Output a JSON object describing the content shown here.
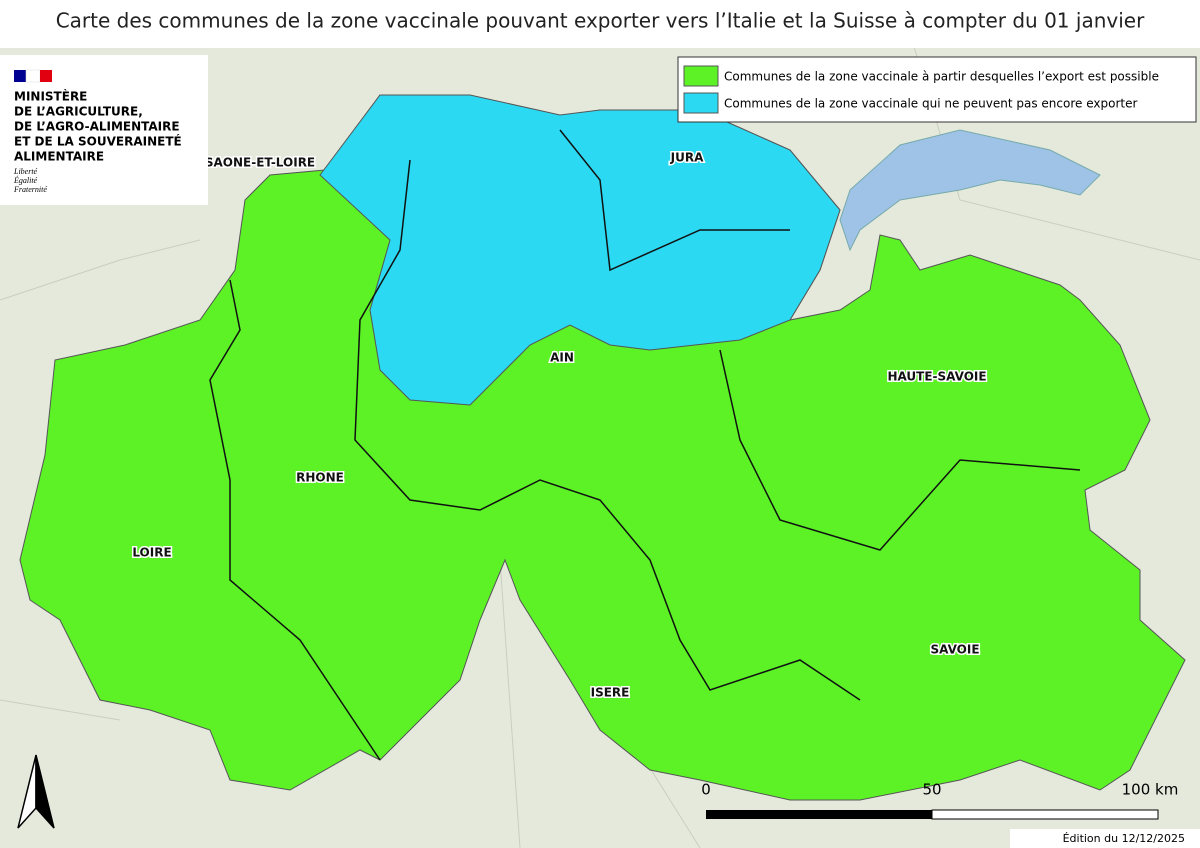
{
  "title": "Carte des communes de la zone vaccinale pouvant exporter vers l’Italie et la Suisse à compter du 01 janvier",
  "logo": {
    "lines": [
      "MINISTÈRE",
      "DE L’AGRICULTURE,",
      "DE L’AGRO-ALIMENTAIRE",
      "ET DE LA SOUVERAINETÉ",
      "ALIMENTAIRE"
    ],
    "motto": [
      "Liberté",
      "Égalité",
      "Fraternité"
    ]
  },
  "legend": [
    {
      "label": "Communes de la zone vaccinale à partir desquelles l’export est possible",
      "color": "#5cf226"
    },
    {
      "label": "Communes de la zone vaccinale qui ne peuvent pas encore exporter",
      "color": "#2bd9f2"
    }
  ],
  "departments": [
    "SAONE-ET-LOIRE",
    "JURA",
    "AIN",
    "HAUTE-SAVOIE",
    "RHONE",
    "LOIRE",
    "ISERE",
    "SAVOIE"
  ],
  "scale": [
    "0",
    "50",
    "100 km"
  ],
  "edition": "Édition du 12/12/2025"
}
